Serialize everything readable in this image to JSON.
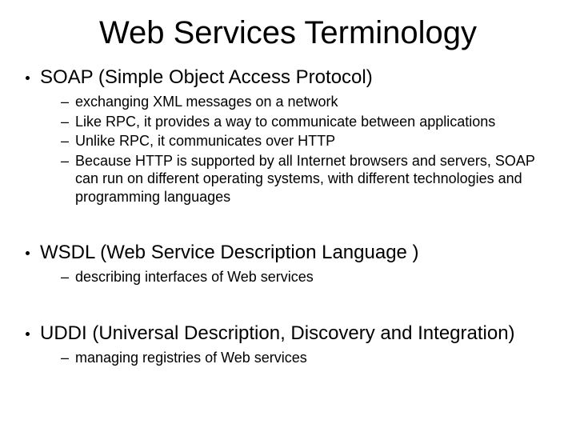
{
  "title": "Web Services Terminology",
  "colors": {
    "text": "#000000",
    "background": "#ffffff"
  },
  "typography": {
    "font_family": "Comic Sans MS",
    "title_fontsize": 40,
    "l1_fontsize": 24,
    "l2_fontsize": 18
  },
  "bullets": {
    "l1_marker": "•",
    "l2_marker": "–"
  },
  "sections": [
    {
      "heading": "SOAP (Simple Object Access Protocol)",
      "items": [
        "exchanging XML messages on a network",
        "Like RPC, it provides a way to communicate between applications",
        "Unlike RPC, it communicates over HTTP",
        "Because HTTP is supported by all Internet browsers and servers, SOAP can run on different operating systems, with different technologies and programming languages"
      ]
    },
    {
      "heading": "WSDL (Web Service Description Language )",
      "items": [
        "describing interfaces of Web services"
      ]
    },
    {
      "heading": "UDDI (Universal Description, Discovery and Integration)",
      "items": [
        "managing registries of Web services"
      ]
    }
  ]
}
